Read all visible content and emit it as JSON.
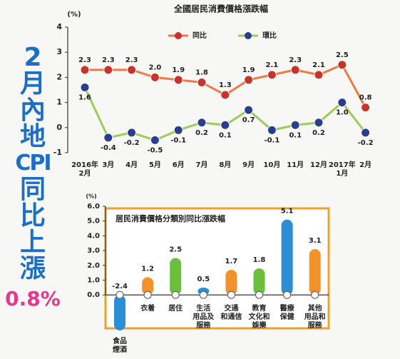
{
  "headline": {
    "lines": [
      "2",
      "月",
      "內",
      "地",
      "CPI",
      "同",
      "比",
      "上",
      "漲"
    ],
    "value": "0.8%"
  },
  "chart_data": [
    {
      "type": "line",
      "title": "全國居民消費價格漲跌幅",
      "y_label": "(%)",
      "categories": [
        "2016年\n2月",
        "3月",
        "4月",
        "5月",
        "6月",
        "7月",
        "8月",
        "9月",
        "10月",
        "11月",
        "12月",
        "2017年\n1月",
        "2月"
      ],
      "series": [
        {
          "name": "同比",
          "color": "#ee7a45",
          "marker_color": "#c8332a",
          "values": [
            2.3,
            2.3,
            2.3,
            2.0,
            1.9,
            1.8,
            1.3,
            1.9,
            2.1,
            2.3,
            2.1,
            2.5,
            0.8
          ],
          "value_labels": [
            "2.3",
            "2.3",
            "2.3",
            "2.0",
            "1.9",
            "1.8",
            "1.3",
            "1.9",
            "2.1",
            "2.3",
            "2.1",
            "2.5",
            "0.8"
          ]
        },
        {
          "name": "環比",
          "color": "#9ccc5a",
          "marker_color": "#2b3d8f",
          "values": [
            1.6,
            -0.4,
            -0.2,
            -0.5,
            -0.1,
            0.2,
            0.1,
            0.7,
            -0.1,
            0.1,
            0.2,
            1.0,
            -0.2
          ],
          "value_labels": [
            "1.6",
            "-0.4",
            "-0.2",
            "-0.5",
            "-0.1",
            "0.2",
            "0.1",
            "0.7",
            "-0.1",
            "0.1",
            "0.2",
            "1.0",
            "-0.2"
          ]
        }
      ],
      "ylim": [
        -1,
        4
      ],
      "yticks": [
        -1,
        0,
        1,
        2,
        3,
        4
      ]
    },
    {
      "type": "bar",
      "title": "居民消費價格分類別同比漲跌幅",
      "y_label": "(%)",
      "categories": [
        "食品\n煙酒",
        "衣着",
        "居住",
        "生活\n用品及\n服務",
        "交通\n和通信",
        "教育\n文化和\n娛樂",
        "醫療\n保健",
        "其他\n用品和\n服務"
      ],
      "values": [
        -2.4,
        1.2,
        2.5,
        0.5,
        1.7,
        1.8,
        5.1,
        3.1
      ],
      "colors": [
        "#2b8fd6",
        "#f2922a",
        "#6cbf3c",
        "#2b8fd6",
        "#f2922a",
        "#6cbf3c",
        "#2b8fd6",
        "#f2922a"
      ],
      "ylim": [
        -2.5,
        6
      ],
      "yticks": [
        {
          "value": 0,
          "label": "0.0"
        },
        {
          "value": 1,
          "label": "1.0"
        },
        {
          "value": 2,
          "label": "2.0"
        },
        {
          "value": 3,
          "label": "3.0"
        },
        {
          "value": 4,
          "label": "4.0"
        },
        {
          "value": 5,
          "label": "5.0"
        },
        {
          "value": 6,
          "label": "6.0"
        }
      ]
    }
  ]
}
